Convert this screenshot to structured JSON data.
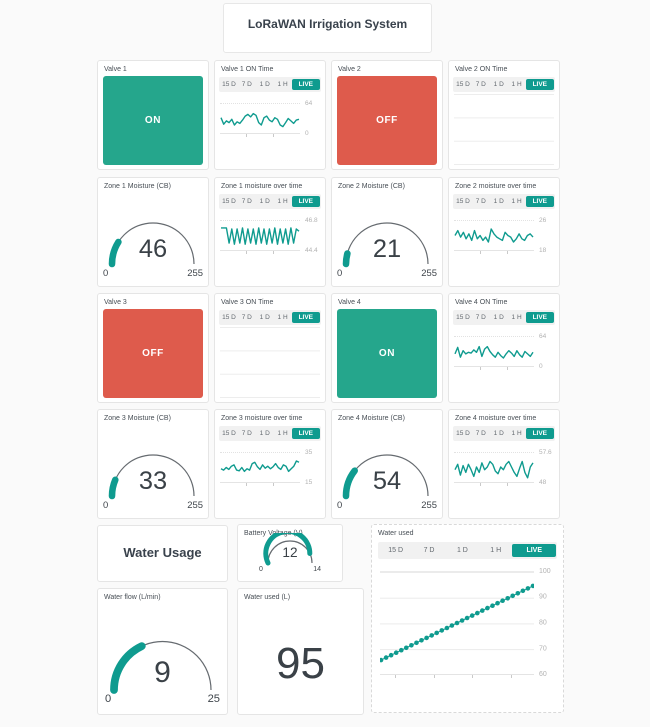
{
  "title": "LoRaWAN Irrigation System",
  "colors": {
    "accent": "#0f9b8f",
    "valve_on": "#25a68c",
    "valve_off": "#de5b4c"
  },
  "time_ranges": [
    "15 D",
    "7 D",
    "1 D",
    "1 H"
  ],
  "live": "LIVE",
  "valves": [
    {
      "label": "Valve 1",
      "state": "ON"
    },
    {
      "label": "Valve 2",
      "state": "OFF"
    },
    {
      "label": "Valve 3",
      "state": "OFF"
    },
    {
      "label": "Valve 4",
      "state": "ON"
    }
  ],
  "gauges": {
    "zone1": {
      "label": "Zone 1 Moisture (CB)",
      "value": 46,
      "min": 0,
      "max": 255
    },
    "zone2": {
      "label": "Zone 2 Moisture (CB)",
      "value": 21,
      "min": 0,
      "max": 255
    },
    "zone3": {
      "label": "Zone 3 Moisture (CB)",
      "value": 33,
      "min": 0,
      "max": 255
    },
    "zone4": {
      "label": "Zone 4 Moisture (CB)",
      "value": 54,
      "min": 0,
      "max": 255
    },
    "battery": {
      "label": "Battery Voltage (V)",
      "value": 12,
      "min": 0,
      "max": 14
    },
    "water_flow": {
      "label": "Water flow (L/min)",
      "value": 9,
      "min": 0,
      "max": 25
    }
  },
  "water_usage_title": "Water Usage",
  "water_used_number": {
    "label": "Water used (L)",
    "value": "95"
  },
  "chart_data": [
    {
      "type": "line",
      "title": "Valve 1 ON Time",
      "ylim": [
        0,
        64
      ],
      "ylabels": [
        "64",
        "0"
      ],
      "values": [
        34,
        18,
        26,
        22,
        30,
        16,
        24,
        20,
        28,
        38,
        42,
        36,
        44,
        40,
        22,
        16,
        34,
        38,
        28,
        24,
        34,
        30,
        16,
        12,
        22,
        32,
        26,
        20,
        28,
        30
      ]
    },
    {
      "type": "line",
      "title": "Valve 2 ON Time",
      "ylim": [
        0,
        64
      ],
      "ylabels": [],
      "values": []
    },
    {
      "type": "line",
      "title": "Zone 1 moisture over time",
      "ylim": [
        44.4,
        46.8
      ],
      "ylabels": [
        "46.8",
        "44.4"
      ],
      "values": [
        46.3,
        46.3,
        46.3,
        44.9,
        46.2,
        44.8,
        46.2,
        44.9,
        46.3,
        44.8,
        46.2,
        44.9,
        46.2,
        44.8,
        46.3,
        44.9,
        46.2,
        44.8,
        46.2,
        44.9,
        46.3,
        44.8,
        46.2,
        44.9,
        46.2,
        44.8,
        46.3,
        44.9,
        46.2,
        46.0
      ]
    },
    {
      "type": "line",
      "title": "Zone 2 moisture over time",
      "ylim": [
        18,
        26
      ],
      "ylabels": [
        "26",
        "18"
      ],
      "values": [
        22,
        23.5,
        21.5,
        23,
        21,
        22.5,
        20.5,
        23.5,
        21,
        22,
        20.5,
        21.5,
        20,
        24,
        22.5,
        21.5,
        21,
        20.5,
        23,
        22,
        21.5,
        20,
        21,
        22.5,
        21,
        20.5,
        22,
        22.5,
        21.5
      ]
    },
    {
      "type": "line",
      "title": "Valve 3 ON Time",
      "ylim": [
        0,
        64
      ],
      "ylabels": [],
      "values": []
    },
    {
      "type": "line",
      "title": "Valve 4 ON Time",
      "ylim": [
        0,
        64
      ],
      "ylabels": [
        "64",
        "0"
      ],
      "values": [
        26,
        42,
        18,
        34,
        26,
        30,
        28,
        36,
        30,
        44,
        20,
        38,
        44,
        32,
        24,
        18,
        30,
        22,
        16,
        26,
        34,
        28,
        20,
        34,
        24,
        18,
        32,
        26,
        20,
        30
      ]
    },
    {
      "type": "line",
      "title": "Zone 3 moisture over time",
      "ylim": [
        15,
        35
      ],
      "ylabels": [
        "35",
        "15"
      ],
      "values": [
        24,
        23,
        25,
        23.5,
        26,
        27,
        23,
        22.5,
        25,
        22,
        24,
        23,
        28,
        29,
        25.5,
        23.5,
        27,
        24.5,
        26,
        24,
        25.5,
        28,
        25,
        23.5,
        27,
        26,
        22,
        24,
        26,
        30,
        29
      ]
    },
    {
      "type": "line",
      "title": "Zone 4 moisture over time",
      "ylim": [
        48,
        57.6
      ],
      "ylabels": [
        "57.6",
        "48"
      ],
      "values": [
        52,
        54,
        50,
        53.5,
        51,
        54,
        52,
        49.5,
        53,
        51,
        54.5,
        52,
        53,
        55,
        54,
        51.5,
        50.5,
        53,
        52,
        54,
        55,
        53,
        51,
        49.5,
        52.5,
        55,
        51,
        49,
        53,
        54.5
      ]
    },
    {
      "type": "line",
      "title": "Water used",
      "ylim": [
        60,
        100
      ],
      "ylabels": [
        "100",
        "90",
        "80",
        "70",
        "60"
      ],
      "markers": true,
      "values": [
        65,
        66,
        67,
        68,
        69,
        70,
        71,
        72,
        73,
        74,
        75,
        76,
        77,
        78,
        79,
        80,
        81,
        82,
        83,
        84,
        85,
        86,
        87,
        88,
        89,
        90,
        91,
        92,
        93,
        94,
        95
      ]
    }
  ]
}
